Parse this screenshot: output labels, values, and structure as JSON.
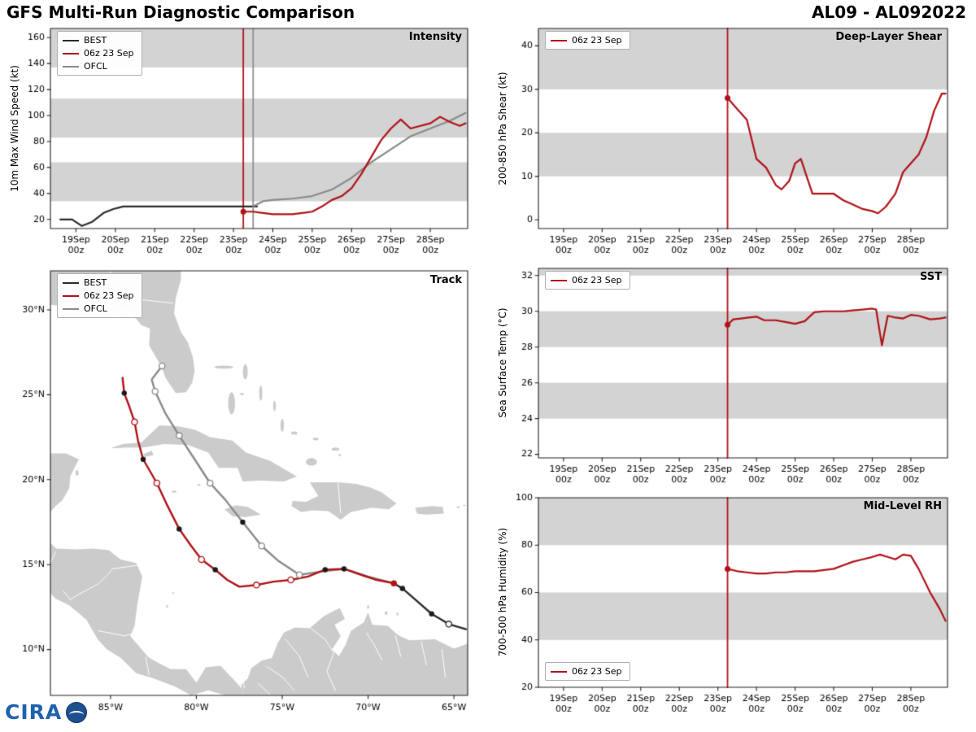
{
  "header": {
    "title": "GFS Multi-Run Diagnostic Comparison",
    "storm_id": "AL09 - AL092022"
  },
  "logo": {
    "text": "CIRA"
  },
  "colors": {
    "best": "#2b2b2b",
    "model": "#b01218",
    "ofcl": "#8a8a8a",
    "vline_gray": "#909090",
    "band": "#d3d3d3",
    "land": "#cbcbcb",
    "frame": "#222222",
    "logo_blue": "#1f62ad"
  },
  "chart_data": [
    {
      "id": "intensity",
      "type": "line",
      "title": "Intensity",
      "ylabel": "10m Max Wind Speed (kt)",
      "xlim": [
        18.35,
        28.95
      ],
      "ylim": [
        13,
        167
      ],
      "yticks": [
        20,
        40,
        60,
        80,
        100,
        120,
        140,
        160
      ],
      "xtick_values": [
        19,
        20,
        21,
        22,
        23,
        24,
        25,
        26,
        27,
        28
      ],
      "xtick_labels": [
        "19Sep",
        "20Sep",
        "21Sep",
        "22Sep",
        "23Sep",
        "24Sep",
        "25Sep",
        "26Sep",
        "27Sep",
        "28Sep"
      ],
      "xtick_sub": "00z",
      "bands": [
        [
          34,
          64
        ],
        [
          83,
          113
        ],
        [
          137,
          167
        ]
      ],
      "vlines": [
        {
          "x": 23.25,
          "color_key": "model"
        },
        {
          "x": 23.5,
          "color_key": "vline_gray"
        }
      ],
      "legend": [
        {
          "label": "BEST",
          "color_key": "best"
        },
        {
          "label": "06z 23 Sep",
          "color_key": "model"
        },
        {
          "label": "OFCL",
          "color_key": "ofcl"
        }
      ],
      "series": [
        {
          "name": "BEST",
          "color_key": "best",
          "x": [
            18.6,
            18.9,
            19.15,
            19.4,
            19.7,
            19.95,
            20.2,
            20.45,
            21.0,
            21.5,
            22.0,
            22.5,
            23.0,
            23.3,
            23.6
          ],
          "y": [
            20,
            20,
            15,
            18,
            25,
            28,
            30,
            30,
            30,
            30,
            30,
            30,
            30,
            30,
            30
          ]
        },
        {
          "name": "OFCL",
          "color_key": "ofcl",
          "x": [
            23.5,
            23.75,
            24.0,
            24.5,
            25.0,
            25.5,
            26.0,
            26.5,
            27.0,
            27.5,
            28.0,
            28.5,
            28.9
          ],
          "y": [
            30,
            34,
            35,
            36,
            38,
            43,
            52,
            64,
            74,
            84,
            90,
            96,
            102
          ]
        },
        {
          "name": "06z 23 Sep",
          "color_key": "model",
          "dot_at_start": true,
          "x": [
            23.25,
            23.5,
            23.75,
            24.0,
            24.25,
            24.5,
            24.75,
            25.0,
            25.25,
            25.5,
            25.75,
            26.0,
            26.25,
            26.5,
            26.75,
            27.0,
            27.25,
            27.5,
            27.75,
            28.0,
            28.25,
            28.5,
            28.75,
            28.9
          ],
          "y": [
            26,
            26,
            25,
            24,
            24,
            24,
            25,
            26,
            30,
            35,
            38,
            44,
            55,
            68,
            81,
            90,
            97,
            90,
            92,
            94,
            99,
            95,
            92,
            94
          ]
        }
      ]
    },
    {
      "id": "shear",
      "type": "line",
      "title": "Deep-Layer Shear",
      "ylabel": "200-850 hPa Shear (kt)",
      "xlim": [
        18.35,
        28.95
      ],
      "ylim": [
        -2,
        44
      ],
      "yticks": [
        0,
        10,
        20,
        30,
        40
      ],
      "xtick_values": [
        19,
        20,
        21,
        22,
        23,
        24,
        25,
        26,
        27,
        28
      ],
      "xtick_labels": [
        "19Sep",
        "20Sep",
        "21Sep",
        "22Sep",
        "23Sep",
        "24Sep",
        "25Sep",
        "26Sep",
        "27Sep",
        "28Sep"
      ],
      "xtick_sub": "00z",
      "bands": [
        [
          10,
          20
        ],
        [
          30,
          44
        ]
      ],
      "vlines": [
        {
          "x": 23.25,
          "color_key": "model"
        }
      ],
      "legend": [
        {
          "label": "06z 23 Sep",
          "color_key": "model"
        }
      ],
      "series": [
        {
          "name": "06z 23 Sep",
          "color_key": "model",
          "dot_at_start": true,
          "x": [
            23.25,
            23.5,
            23.75,
            24.0,
            24.25,
            24.5,
            24.65,
            24.85,
            25.0,
            25.15,
            25.3,
            25.45,
            25.75,
            26.0,
            26.25,
            26.5,
            26.75,
            27.0,
            27.15,
            27.35,
            27.6,
            27.8,
            28.0,
            28.2,
            28.4,
            28.6,
            28.8,
            28.9
          ],
          "y": [
            28,
            25.5,
            23,
            14,
            12,
            8,
            7,
            9,
            13,
            14,
            10,
            6,
            6,
            6,
            4.5,
            3.5,
            2.5,
            2,
            1.5,
            3,
            6,
            11,
            13,
            15,
            19,
            25,
            29,
            29
          ]
        }
      ]
    },
    {
      "id": "sst",
      "type": "line",
      "title": "SST",
      "ylabel": "Sea Surface Temp (°C)",
      "xlim": [
        18.35,
        28.95
      ],
      "ylim": [
        21.8,
        32.4
      ],
      "yticks": [
        22,
        24,
        26,
        28,
        30,
        32
      ],
      "xtick_values": [
        19,
        20,
        21,
        22,
        23,
        24,
        25,
        26,
        27,
        28
      ],
      "xtick_labels": [
        "19Sep",
        "20Sep",
        "21Sep",
        "22Sep",
        "23Sep",
        "24Sep",
        "25Sep",
        "26Sep",
        "27Sep",
        "28Sep"
      ],
      "xtick_sub": "00z",
      "bands": [
        [
          24,
          26
        ],
        [
          28,
          30
        ],
        [
          32,
          32.4
        ]
      ],
      "vlines": [
        {
          "x": 23.25,
          "color_key": "model"
        }
      ],
      "legend": [
        {
          "label": "06z 23 Sep",
          "color_key": "model"
        }
      ],
      "series": [
        {
          "name": "06z 23 Sep",
          "color_key": "model",
          "dot_at_start": true,
          "x": [
            23.25,
            23.4,
            23.6,
            23.8,
            24.0,
            24.2,
            24.5,
            24.75,
            25.0,
            25.25,
            25.5,
            25.75,
            26.0,
            26.25,
            26.5,
            26.75,
            27.0,
            27.1,
            27.25,
            27.4,
            27.6,
            27.8,
            28.0,
            28.2,
            28.5,
            28.75,
            28.9
          ],
          "y": [
            29.25,
            29.55,
            29.6,
            29.65,
            29.7,
            29.5,
            29.5,
            29.4,
            29.3,
            29.45,
            29.95,
            30.0,
            30.0,
            30.0,
            30.05,
            30.1,
            30.15,
            30.1,
            28.1,
            29.75,
            29.65,
            29.6,
            29.8,
            29.75,
            29.55,
            29.6,
            29.65
          ]
        }
      ]
    },
    {
      "id": "rh",
      "type": "line",
      "title": "Mid-Level RH",
      "ylabel": "700-500 hPa Humidity (%)",
      "xlim": [
        18.35,
        28.95
      ],
      "ylim": [
        20,
        100
      ],
      "yticks": [
        20,
        40,
        60,
        80,
        100
      ],
      "xtick_values": [
        19,
        20,
        21,
        22,
        23,
        24,
        25,
        26,
        27,
        28
      ],
      "xtick_labels": [
        "19Sep",
        "20Sep",
        "21Sep",
        "22Sep",
        "23Sep",
        "24Sep",
        "25Sep",
        "26Sep",
        "27Sep",
        "28Sep"
      ],
      "xtick_sub": "00z",
      "bands": [
        [
          40,
          60
        ],
        [
          80,
          100
        ]
      ],
      "vlines": [
        {
          "x": 23.25,
          "color_key": "model"
        }
      ],
      "legend": [
        {
          "label": "06z 23 Sep",
          "color_key": "model"
        }
      ],
      "series": [
        {
          "name": "06z 23 Sep",
          "color_key": "model",
          "dot_at_start": true,
          "x": [
            23.25,
            23.5,
            23.75,
            24.0,
            24.25,
            24.5,
            24.75,
            25.0,
            25.25,
            25.5,
            25.75,
            26.0,
            26.25,
            26.5,
            26.75,
            27.0,
            27.2,
            27.4,
            27.6,
            27.8,
            28.0,
            28.2,
            28.5,
            28.75,
            28.9
          ],
          "y": [
            70,
            69,
            68.5,
            68,
            68,
            68.5,
            68.5,
            69,
            69,
            69,
            69.5,
            70,
            71.5,
            73,
            74,
            75,
            76,
            75,
            74,
            76,
            75.5,
            70,
            60,
            53,
            48
          ]
        }
      ]
    },
    {
      "id": "track",
      "type": "map",
      "title": "Track",
      "xlim": [
        -88.5,
        -64.2
      ],
      "ylim": [
        7.3,
        32.3
      ],
      "xtick_values": [
        -85,
        -80,
        -75,
        -70,
        -65
      ],
      "xtick_labels": [
        "85°W",
        "80°W",
        "75°W",
        "70°W",
        "65°W"
      ],
      "ytick_values": [
        10,
        15,
        20,
        25,
        30
      ],
      "ytick_labels": [
        "10°N",
        "15°N",
        "20°N",
        "25°N",
        "30°N"
      ],
      "legend": [
        {
          "label": "BEST",
          "color_key": "best"
        },
        {
          "label": "06z 23 Sep",
          "color_key": "model"
        },
        {
          "label": "OFCL",
          "color_key": "ofcl"
        }
      ],
      "series": [
        {
          "name": "BEST",
          "color_key": "best",
          "points": [
            [
              -64.3,
              11.2
            ],
            [
              -65.3,
              11.5,
              "open"
            ],
            [
              -66.3,
              12.1,
              "filled"
            ],
            [
              -67.2,
              12.9
            ],
            [
              -68.0,
              13.6,
              "filled"
            ],
            [
              -68.5,
              13.9
            ]
          ]
        },
        {
          "name": "OFCL",
          "color_key": "ofcl",
          "points": [
            [
              -68.5,
              13.9
            ],
            [
              -70.0,
              14.3
            ],
            [
              -71.4,
              14.75
            ],
            [
              -72.7,
              14.6
            ],
            [
              -74.0,
              14.4,
              "open"
            ],
            [
              -75.2,
              15.2
            ],
            [
              -76.2,
              16.1,
              "open"
            ],
            [
              -77.3,
              17.5,
              "filled"
            ],
            [
              -78.3,
              18.8
            ],
            [
              -79.2,
              19.8,
              "open"
            ],
            [
              -80.1,
              21.2
            ],
            [
              -81.0,
              22.6,
              "open"
            ],
            [
              -81.8,
              23.9
            ],
            [
              -82.4,
              25.2,
              "open"
            ],
            [
              -82.6,
              25.9
            ],
            [
              -82.3,
              26.3
            ],
            [
              -82.0,
              26.7,
              "open"
            ]
          ]
        },
        {
          "name": "06z 23 Sep",
          "color_key": "model",
          "points": [
            [
              -68.5,
              13.9,
              "reddot"
            ],
            [
              -69.5,
              14.1
            ],
            [
              -70.4,
              14.4
            ],
            [
              -71.4,
              14.75,
              "filled"
            ],
            [
              -72.5,
              14.7,
              "filled"
            ],
            [
              -73.5,
              14.3
            ],
            [
              -74.5,
              14.1,
              "open"
            ],
            [
              -75.5,
              14.0
            ],
            [
              -76.5,
              13.8,
              "open"
            ],
            [
              -77.5,
              13.7
            ],
            [
              -78.2,
              14.1
            ],
            [
              -78.9,
              14.7,
              "filled"
            ],
            [
              -79.7,
              15.3,
              "open"
            ],
            [
              -80.3,
              16.1
            ],
            [
              -81.0,
              17.1,
              "filled"
            ],
            [
              -81.7,
              18.5
            ],
            [
              -82.3,
              19.8,
              "open"
            ],
            [
              -83.1,
              21.2,
              "filled"
            ],
            [
              -83.4,
              22.3
            ],
            [
              -83.6,
              23.4,
              "open"
            ],
            [
              -83.9,
              24.3
            ],
            [
              -84.2,
              25.1,
              "filled"
            ],
            [
              -84.3,
              26.0
            ]
          ]
        }
      ]
    }
  ]
}
